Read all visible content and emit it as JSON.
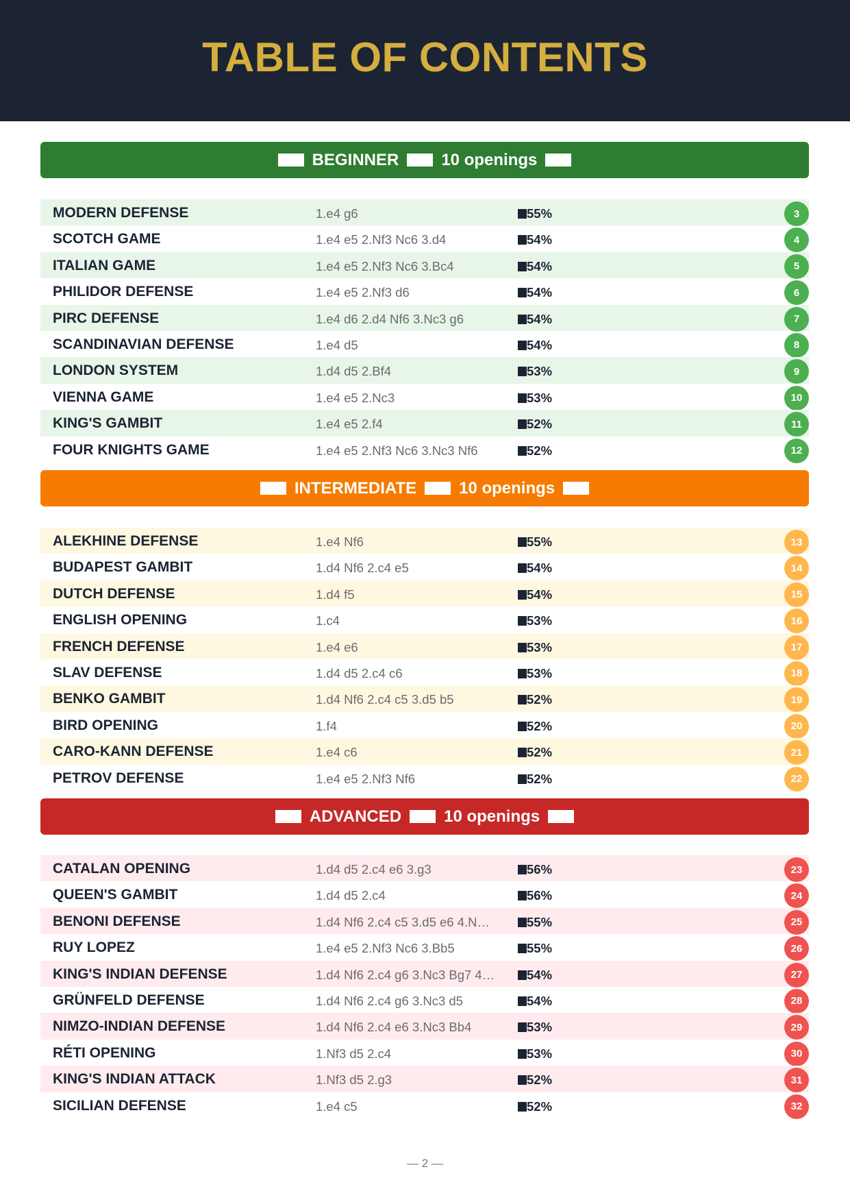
{
  "title": "TABLE OF CONTENTS",
  "colors": {
    "header_bg": "#1c2433",
    "title": "#d4ae3e",
    "beginner": "#2e7d32",
    "beginner_row": "#e8f5e9",
    "beginner_badge": "#4caf50",
    "intermediate": "#f57c00",
    "intermediate_row": "#fff8e1",
    "intermediate_badge": "#ffb74d",
    "advanced": "#c62828",
    "advanced_row": "#ffebee",
    "advanced_badge": "#ef5350"
  },
  "sections": [
    {
      "level": "BEGINNER",
      "count": "10 openings",
      "rows": [
        {
          "name": "MODERN DEFENSE",
          "moves": "1.e4 g6",
          "pct": "55%",
          "page": "3"
        },
        {
          "name": "SCOTCH GAME",
          "moves": "1.e4 e5 2.Nf3 Nc6 3.d4",
          "pct": "54%",
          "page": "4"
        },
        {
          "name": "ITALIAN GAME",
          "moves": "1.e4 e5 2.Nf3 Nc6 3.Bc4",
          "pct": "54%",
          "page": "5"
        },
        {
          "name": "PHILIDOR DEFENSE",
          "moves": "1.e4 e5 2.Nf3 d6",
          "pct": "54%",
          "page": "6"
        },
        {
          "name": "PIRC DEFENSE",
          "moves": "1.e4 d6 2.d4 Nf6 3.Nc3 g6",
          "pct": "54%",
          "page": "7"
        },
        {
          "name": "SCANDINAVIAN DEFENSE",
          "moves": "1.e4 d5",
          "pct": "54%",
          "page": "8"
        },
        {
          "name": "LONDON SYSTEM",
          "moves": "1.d4 d5 2.Bf4",
          "pct": "53%",
          "page": "9"
        },
        {
          "name": "VIENNA GAME",
          "moves": "1.e4 e5 2.Nc3",
          "pct": "53%",
          "page": "10"
        },
        {
          "name": "KING'S GAMBIT",
          "moves": "1.e4 e5 2.f4",
          "pct": "52%",
          "page": "11"
        },
        {
          "name": "FOUR KNIGHTS GAME",
          "moves": "1.e4 e5 2.Nf3 Nc6 3.Nc3 Nf6",
          "pct": "52%",
          "page": "12"
        }
      ]
    },
    {
      "level": "INTERMEDIATE",
      "count": "10 openings",
      "rows": [
        {
          "name": "ALEKHINE DEFENSE",
          "moves": "1.e4 Nf6",
          "pct": "55%",
          "page": "13"
        },
        {
          "name": "BUDAPEST GAMBIT",
          "moves": "1.d4 Nf6 2.c4 e5",
          "pct": "54%",
          "page": "14"
        },
        {
          "name": "DUTCH DEFENSE",
          "moves": "1.d4 f5",
          "pct": "54%",
          "page": "15"
        },
        {
          "name": "ENGLISH OPENING",
          "moves": "1.c4",
          "pct": "53%",
          "page": "16"
        },
        {
          "name": "FRENCH DEFENSE",
          "moves": "1.e4 e6",
          "pct": "53%",
          "page": "17"
        },
        {
          "name": "SLAV DEFENSE",
          "moves": "1.d4 d5 2.c4 c6",
          "pct": "53%",
          "page": "18"
        },
        {
          "name": "BENKO GAMBIT",
          "moves": "1.d4 Nf6 2.c4 c5 3.d5 b5",
          "pct": "52%",
          "page": "19"
        },
        {
          "name": "BIRD OPENING",
          "moves": "1.f4",
          "pct": "52%",
          "page": "20"
        },
        {
          "name": "CARO-KANN DEFENSE",
          "moves": "1.e4 c6",
          "pct": "52%",
          "page": "21"
        },
        {
          "name": "PETROV DEFENSE",
          "moves": "1.e4 e5 2.Nf3 Nf6",
          "pct": "52%",
          "page": "22"
        }
      ]
    },
    {
      "level": "ADVANCED",
      "count": "10 openings",
      "rows": [
        {
          "name": "CATALAN OPENING",
          "moves": "1.d4 d5 2.c4 e6 3.g3",
          "pct": "56%",
          "page": "23"
        },
        {
          "name": "QUEEN'S GAMBIT",
          "moves": "1.d4 d5 2.c4",
          "pct": "56%",
          "page": "24"
        },
        {
          "name": "BENONI DEFENSE",
          "moves": "1.d4 Nf6 2.c4 c5 3.d5 e6 4.N…",
          "pct": "55%",
          "page": "25"
        },
        {
          "name": "RUY LOPEZ",
          "moves": "1.e4 e5 2.Nf3 Nc6 3.Bb5",
          "pct": "55%",
          "page": "26"
        },
        {
          "name": "KING'S INDIAN DEFENSE",
          "moves": "1.d4 Nf6 2.c4 g6 3.Nc3 Bg7 4…",
          "pct": "54%",
          "page": "27"
        },
        {
          "name": "GRÜNFELD DEFENSE",
          "moves": "1.d4 Nf6 2.c4 g6 3.Nc3 d5",
          "pct": "54%",
          "page": "28"
        },
        {
          "name": "NIMZO-INDIAN DEFENSE",
          "moves": "1.d4 Nf6 2.c4 e6 3.Nc3 Bb4",
          "pct": "53%",
          "page": "29"
        },
        {
          "name": "RÉTI OPENING",
          "moves": "1.Nf3 d5 2.c4",
          "pct": "53%",
          "page": "30"
        },
        {
          "name": "KING'S INDIAN ATTACK",
          "moves": "1.Nf3 d5 2.g3",
          "pct": "52%",
          "page": "31"
        },
        {
          "name": "SICILIAN DEFENSE",
          "moves": "1.e4 c5",
          "pct": "52%",
          "page": "32"
        }
      ]
    }
  ],
  "footer": "— 2 —"
}
